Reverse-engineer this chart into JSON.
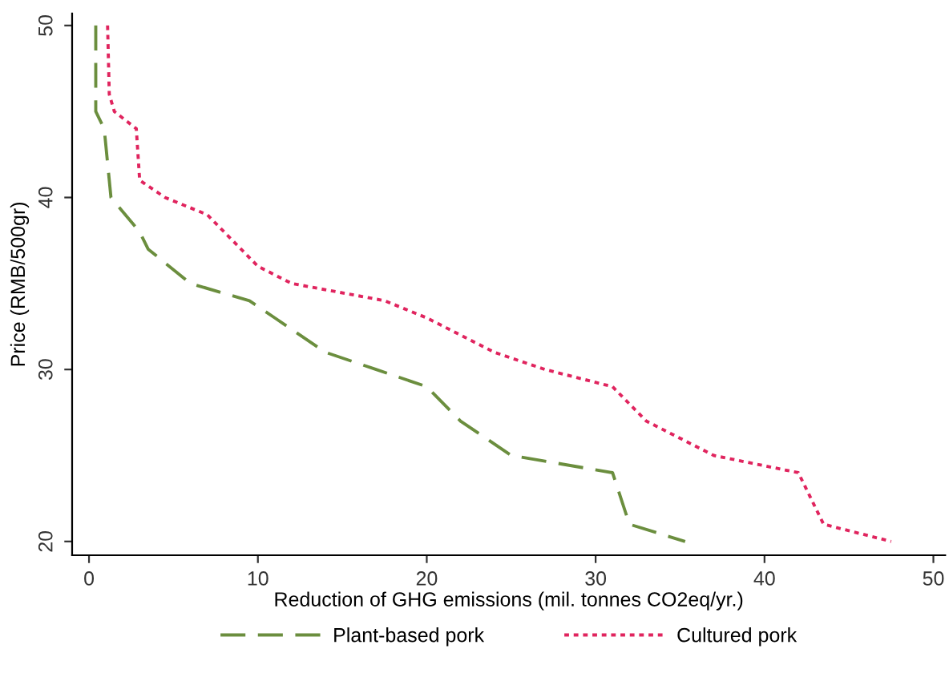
{
  "chart_data": {
    "type": "line",
    "xlabel": "Reduction of GHG emissions (mil. tonnes CO2eq/yr.)",
    "ylabel": "Price (RMB/500gr)",
    "xlim": [
      -1,
      50.7
    ],
    "ylim": [
      19.2,
      50.7
    ],
    "xticks": [
      0,
      10,
      20,
      30,
      40,
      50
    ],
    "yticks": [
      20,
      30,
      40,
      50
    ],
    "grid": false,
    "legend": "bottom",
    "marker": "none",
    "series": [
      {
        "name": "Plant-based pork",
        "color": "#6b8e3e",
        "line_style": "dashed",
        "x": [
          0.4,
          0.4,
          0.9,
          1.3,
          3,
          3.5,
          6,
          9.5,
          11,
          14,
          17,
          20,
          21,
          22,
          25,
          31,
          32,
          35.3
        ],
        "values": [
          50,
          45,
          44,
          40,
          38,
          37,
          35,
          34,
          33,
          31,
          30,
          29,
          28,
          27,
          25,
          24,
          21,
          20
        ]
      },
      {
        "name": "Cultured pork",
        "color": "#e0245e",
        "line_style": "dotted",
        "x": [
          1.1,
          1.2,
          1.5,
          2.8,
          3,
          4.5,
          7,
          9,
          10,
          12,
          17.5,
          20,
          22,
          24,
          27,
          31,
          32,
          33,
          35,
          37,
          42,
          43.5,
          47.5
        ],
        "values": [
          50,
          46,
          45,
          44,
          41,
          40,
          39,
          37,
          36,
          35,
          34,
          33,
          32,
          31,
          30,
          29,
          28,
          27,
          26,
          25,
          24,
          21,
          20
        ]
      }
    ]
  }
}
